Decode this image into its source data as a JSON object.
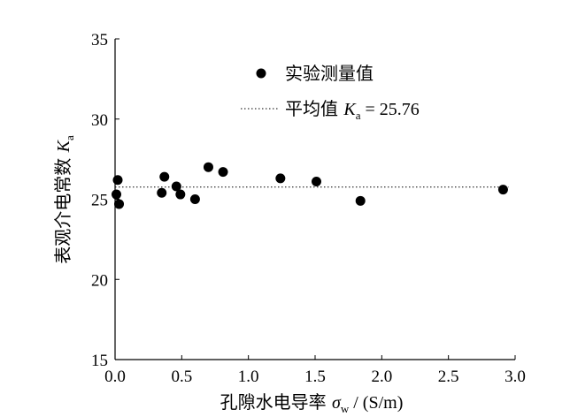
{
  "chart_data": {
    "type": "scatter",
    "xlabel": {
      "prefix": "孔隙水电导率 ",
      "symbol": "σ",
      "subscript": "w",
      "suffix": " / (S/m)"
    },
    "ylabel": {
      "prefix": "表观介电常数 ",
      "symbol": "K",
      "subscript": "a"
    },
    "xlim": [
      0.0,
      3.0
    ],
    "ylim": [
      15,
      35
    ],
    "x_ticks": [
      "0.0",
      "0.5",
      "1.0",
      "1.5",
      "2.0",
      "2.5",
      "3.0"
    ],
    "y_ticks": [
      "15",
      "20",
      "25",
      "30",
      "35"
    ],
    "grid": false,
    "legend_position": "top-right",
    "series": [
      {
        "name": "实验测量值",
        "marker": "circle",
        "color": "#000000",
        "x": [
          0.01,
          0.02,
          0.03,
          0.35,
          0.37,
          0.46,
          0.49,
          0.6,
          0.7,
          0.81,
          1.24,
          1.51,
          1.84,
          2.91
        ],
        "y": [
          25.3,
          26.2,
          24.7,
          25.4,
          26.4,
          25.8,
          25.3,
          25.0,
          27.0,
          26.7,
          26.3,
          26.1,
          24.9,
          25.6
        ]
      }
    ],
    "mean_line": {
      "label_prefix": "平均值 ",
      "symbol": "K",
      "subscript": "a",
      "value_text": " = 25.76",
      "value": 25.76,
      "style": "dotted",
      "x_range": [
        0.0,
        2.95
      ]
    }
  }
}
